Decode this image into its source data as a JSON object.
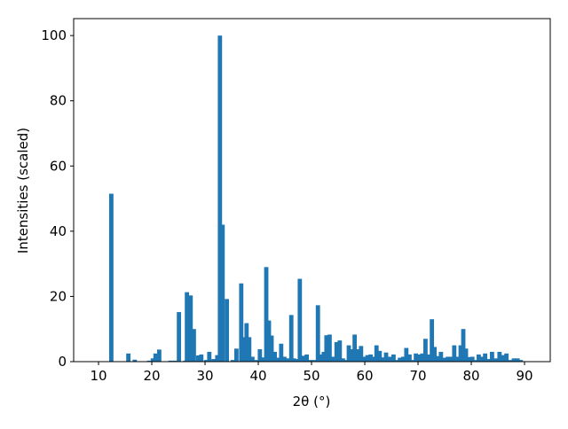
{
  "chart_data": {
    "type": "bar",
    "x_label": "2θ (°)",
    "y_label": "Intensities (scaled)",
    "color": "#1f77b4",
    "x": [
      12.4,
      15.6,
      16.8,
      19.5,
      20.2,
      20.7,
      21.4,
      23.5,
      24.3,
      25.1,
      26.3,
      26.6,
      27.3,
      27.9,
      28.7,
      29.3,
      30.2,
      30.8,
      31.6,
      32.3,
      32.8,
      33.3,
      34.1,
      35.2,
      35.9,
      36.8,
      37.3,
      37.8,
      38.3,
      38.9,
      39.6,
      40.3,
      41.0,
      41.5,
      42.0,
      42.5,
      43.1,
      43.7,
      44.3,
      44.9,
      45.6,
      46.2,
      46.7,
      47.2,
      47.8,
      48.5,
      49.1,
      49.8,
      50.5,
      51.2,
      51.8,
      52.3,
      52.8,
      53.4,
      54.0,
      54.7,
      55.3,
      55.9,
      56.5,
      57.0,
      57.5,
      58.1,
      58.7,
      59.3,
      59.9,
      60.5,
      61.1,
      61.7,
      62.2,
      62.8,
      63.4,
      64.0,
      64.6,
      65.4,
      66.0,
      66.6,
      67.2,
      67.8,
      68.4,
      69.0,
      69.6,
      70.2,
      70.8,
      71.4,
      72.0,
      72.6,
      73.1,
      73.7,
      74.3,
      74.9,
      75.6,
      76.2,
      76.8,
      77.4,
      78.0,
      78.5,
      79.0,
      79.6,
      80.2,
      80.8,
      81.4,
      82.0,
      82.6,
      83.3,
      83.9,
      84.6,
      85.3,
      85.9,
      86.6,
      87.3,
      88.0,
      88.7,
      89.3
    ],
    "values": [
      51.5,
      2.5,
      0.6,
      0.3,
      1.0,
      2.5,
      3.7,
      0.3,
      0.3,
      15.2,
      0.3,
      21.3,
      20.3,
      10,
      1.9,
      2.2,
      0.5,
      3,
      0.8,
      2,
      100,
      42,
      19.2,
      0.5,
      4,
      24,
      7.5,
      11.8,
      7.5,
      1.5,
      0.5,
      3.8,
      1.3,
      29,
      12.6,
      8,
      3,
      1.2,
      5.5,
      1.5,
      1,
      14.3,
      1,
      0.8,
      25.4,
      1.8,
      2.2,
      0.5,
      0.5,
      17.3,
      2.2,
      3,
      8.1,
      8.3,
      1.5,
      6,
      6.5,
      1,
      0.5,
      5,
      3.8,
      8.3,
      3.8,
      4.8,
      1.5,
      2,
      2.2,
      1.5,
      5,
      3.3,
      1.3,
      2.8,
      1.5,
      2.2,
      0.5,
      1.2,
      1.5,
      4.2,
      2.2,
      0.5,
      2.5,
      2.2,
      2.5,
      7,
      2.2,
      13,
      4.5,
      1.7,
      3,
      1.2,
      1.5,
      1.5,
      5,
      1.5,
      5,
      10,
      4,
      1.4,
      1.5,
      0.5,
      2.2,
      1.5,
      2.5,
      0.8,
      3,
      1,
      3,
      2,
      2.5,
      0.5,
      1,
      1,
      0.5
    ],
    "xlim": [
      5.33,
      94.83
    ],
    "ylim": [
      0,
      105.2
    ],
    "xticks": [
      10,
      20,
      30,
      40,
      50,
      60,
      70,
      80,
      90
    ],
    "yticks": [
      0,
      20,
      40,
      60,
      80,
      100
    ]
  }
}
